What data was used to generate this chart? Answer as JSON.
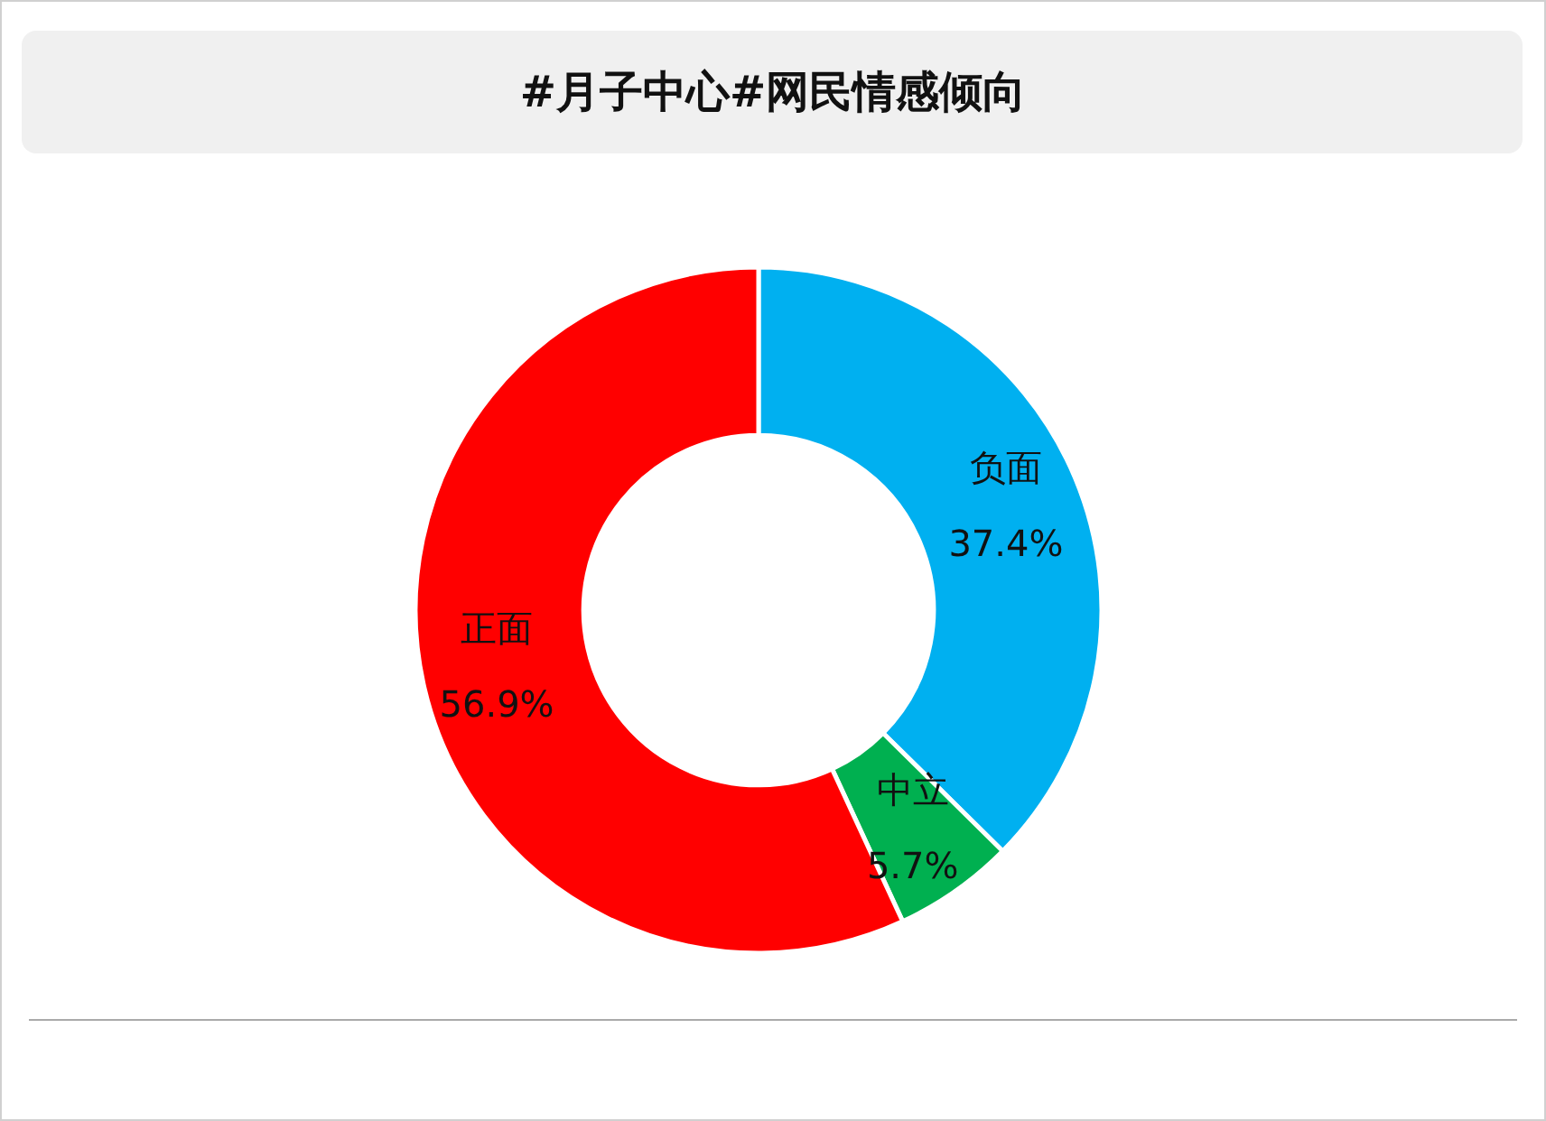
{
  "chart_data": {
    "type": "donut",
    "title": "#月子中心#网民情感倾向",
    "categories": [
      "负面",
      "中立",
      "正面"
    ],
    "values": [
      37.4,
      5.7,
      56.9
    ],
    "value_labels": [
      "37.4%",
      "5.7%",
      "56.9%"
    ],
    "colors": [
      "#00b0f0",
      "#00b050",
      "#ff0000"
    ],
    "legend": false
  }
}
